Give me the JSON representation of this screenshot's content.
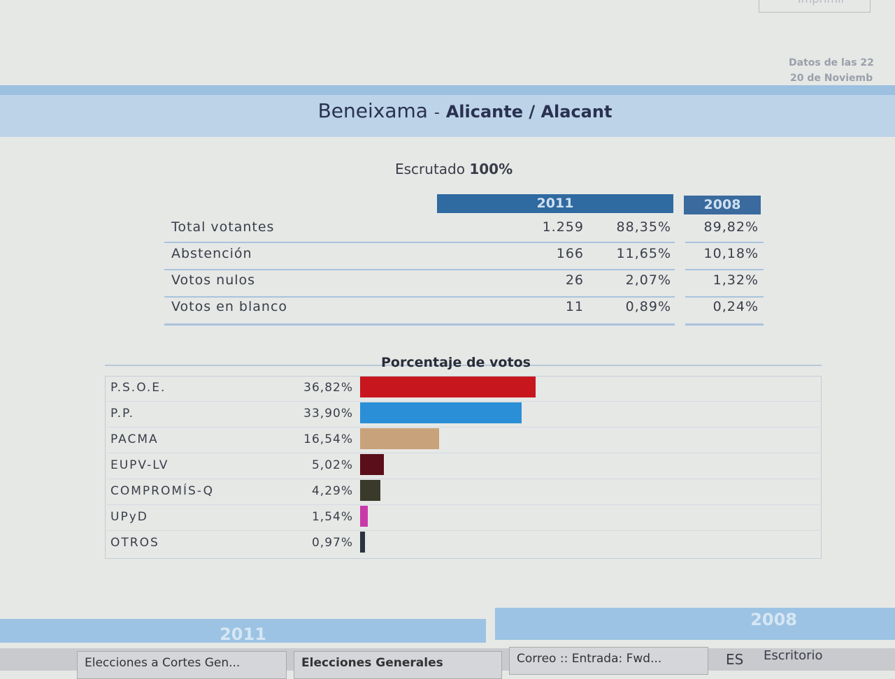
{
  "toolbar": {
    "print": "Imprimir"
  },
  "data_date": [
    "Datos de las 22",
    "20 de Noviemb"
  ],
  "header": {
    "municipality": "Beneixama",
    "separator": "-",
    "province": "Alicante / Alacant"
  },
  "scrutiny": {
    "label": "Escrutado",
    "value": "100%"
  },
  "table": {
    "columns": [
      "2011",
      "2008"
    ],
    "rows": [
      [
        "Total votantes",
        "1.259",
        "88,35%",
        "89,82%"
      ],
      [
        "Abstención",
        "166",
        "11,65%",
        "10,18%"
      ],
      [
        "Votos nulos",
        "26",
        "2,07%",
        "1,32%"
      ],
      [
        "Votos en blanco",
        "11",
        "0,89%",
        "0,24%"
      ]
    ]
  },
  "chart": {
    "type": "bar",
    "title": "Porcentaje de votos",
    "categories": [
      "P.S.O.E.",
      "P.P.",
      "PACMA",
      "EUPV-LV",
      "COMPROMÍS-Q",
      "UPyD",
      "OTROS"
    ],
    "values": [
      36.82,
      33.9,
      16.54,
      5.02,
      4.29,
      1.54,
      0.97
    ],
    "value_labels": [
      "36,82%",
      "33,90%",
      "16,54%",
      "5,02%",
      "4,29%",
      "1,54%",
      "0,97%"
    ],
    "colors": [
      "#c8161e",
      "#2a8fd6",
      "#c8a27a",
      "#5a0e1a",
      "#3a3a2a",
      "#c83aa8",
      "#2b3340"
    ]
  },
  "tabs": [
    "2011",
    "2008"
  ],
  "taskbar": {
    "items": [
      "Elecciones a Cortes Gen...",
      "Elecciones Generales",
      "Correo :: Entrada: Fwd..."
    ],
    "language": "ES",
    "desktop": "Escritorio"
  }
}
